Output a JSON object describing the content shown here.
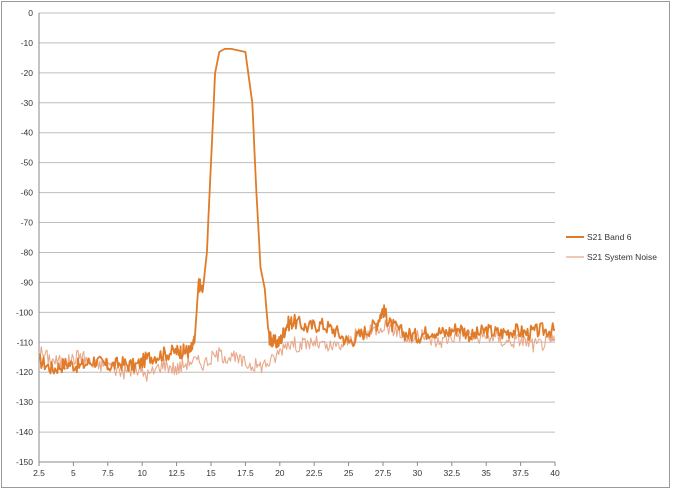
{
  "chart_data": {
    "type": "line",
    "title": "",
    "xlabel": "",
    "ylabel": "",
    "xlim": [
      2.5,
      40
    ],
    "ylim": [
      -150,
      0
    ],
    "x_ticks": [
      2.5,
      5,
      7.5,
      10,
      12.5,
      15,
      17.5,
      20,
      22.5,
      25,
      27.5,
      30,
      32.5,
      35,
      37.5,
      40
    ],
    "x_tick_labels": [
      "2.5",
      "5",
      "7.5",
      "10",
      "12.5",
      "15",
      "17.5",
      "20",
      "22.5",
      "25",
      "27.5",
      "30",
      "32.5",
      "35",
      "37.5",
      "40"
    ],
    "y_ticks": [
      0,
      -10,
      -20,
      -30,
      -40,
      -50,
      -60,
      -70,
      -80,
      -90,
      -100,
      -110,
      -120,
      -130,
      -140,
      -150
    ],
    "y_tick_labels": [
      "0",
      "-10",
      "-20",
      "-30",
      "-40",
      "-50",
      "-60",
      "-70",
      "-80",
      "-90",
      "-100",
      "-110",
      "-120",
      "-130",
      "-140",
      "-150"
    ],
    "grid": "horizontal",
    "legend_position": "right",
    "series": [
      {
        "name": "S21 Band 6",
        "color": "#e07b2a",
        "x": [
          2.5,
          3.5,
          4.5,
          5.5,
          6.5,
          7.5,
          8.5,
          9.5,
          10.5,
          11.5,
          12.5,
          13,
          13.5,
          13.8,
          14.1,
          14.4,
          14.7,
          15,
          15.3,
          15.6,
          16,
          16.5,
          17,
          17.5,
          18,
          18.3,
          18.6,
          18.9,
          19.2,
          19.5,
          20,
          20.5,
          21,
          22,
          23,
          24,
          25,
          26,
          27,
          27.5,
          28,
          29,
          30,
          31,
          32,
          33,
          34,
          35,
          36,
          37,
          38,
          39,
          40
        ],
        "y": [
          -116,
          -119,
          -117,
          -118,
          -116,
          -118,
          -117,
          -118,
          -115,
          -114,
          -113,
          -113,
          -113,
          -110,
          -90,
          -93,
          -80,
          -50,
          -20,
          -13,
          -12,
          -12,
          -12.5,
          -13,
          -30,
          -60,
          -85,
          -92,
          -108,
          -110,
          -110,
          -104,
          -103,
          -105,
          -104,
          -106,
          -110,
          -107,
          -104,
          -99,
          -104,
          -107,
          -108,
          -106,
          -107,
          -105,
          -108,
          -106,
          -107,
          -106,
          -107,
          -106,
          -106
        ]
      },
      {
        "name": "S21 System Noise",
        "color": "#e8a98b",
        "x": [
          2.5,
          3.5,
          4.5,
          5.5,
          6.5,
          7.5,
          8.5,
          9.5,
          10.5,
          11.5,
          12.5,
          13.5,
          14.5,
          15.5,
          16.5,
          17.5,
          18.5,
          19.5,
          20.5,
          21.5,
          22.5,
          23.5,
          24.5,
          25.5,
          26.5,
          27.5,
          28.5,
          29.5,
          30.5,
          31.5,
          32.5,
          33.5,
          34.5,
          35.5,
          36.5,
          37.5,
          38.5,
          39.5,
          40
        ],
        "y": [
          -113,
          -116,
          -117,
          -114,
          -118,
          -117,
          -120,
          -119,
          -121,
          -117,
          -119,
          -116,
          -117,
          -114,
          -115,
          -117,
          -118,
          -116,
          -110,
          -111,
          -110,
          -112,
          -111,
          -108,
          -107,
          -104,
          -106,
          -109,
          -108,
          -110,
          -108,
          -107,
          -109,
          -108,
          -110,
          -109,
          -111,
          -110,
          -109
        ]
      }
    ]
  }
}
